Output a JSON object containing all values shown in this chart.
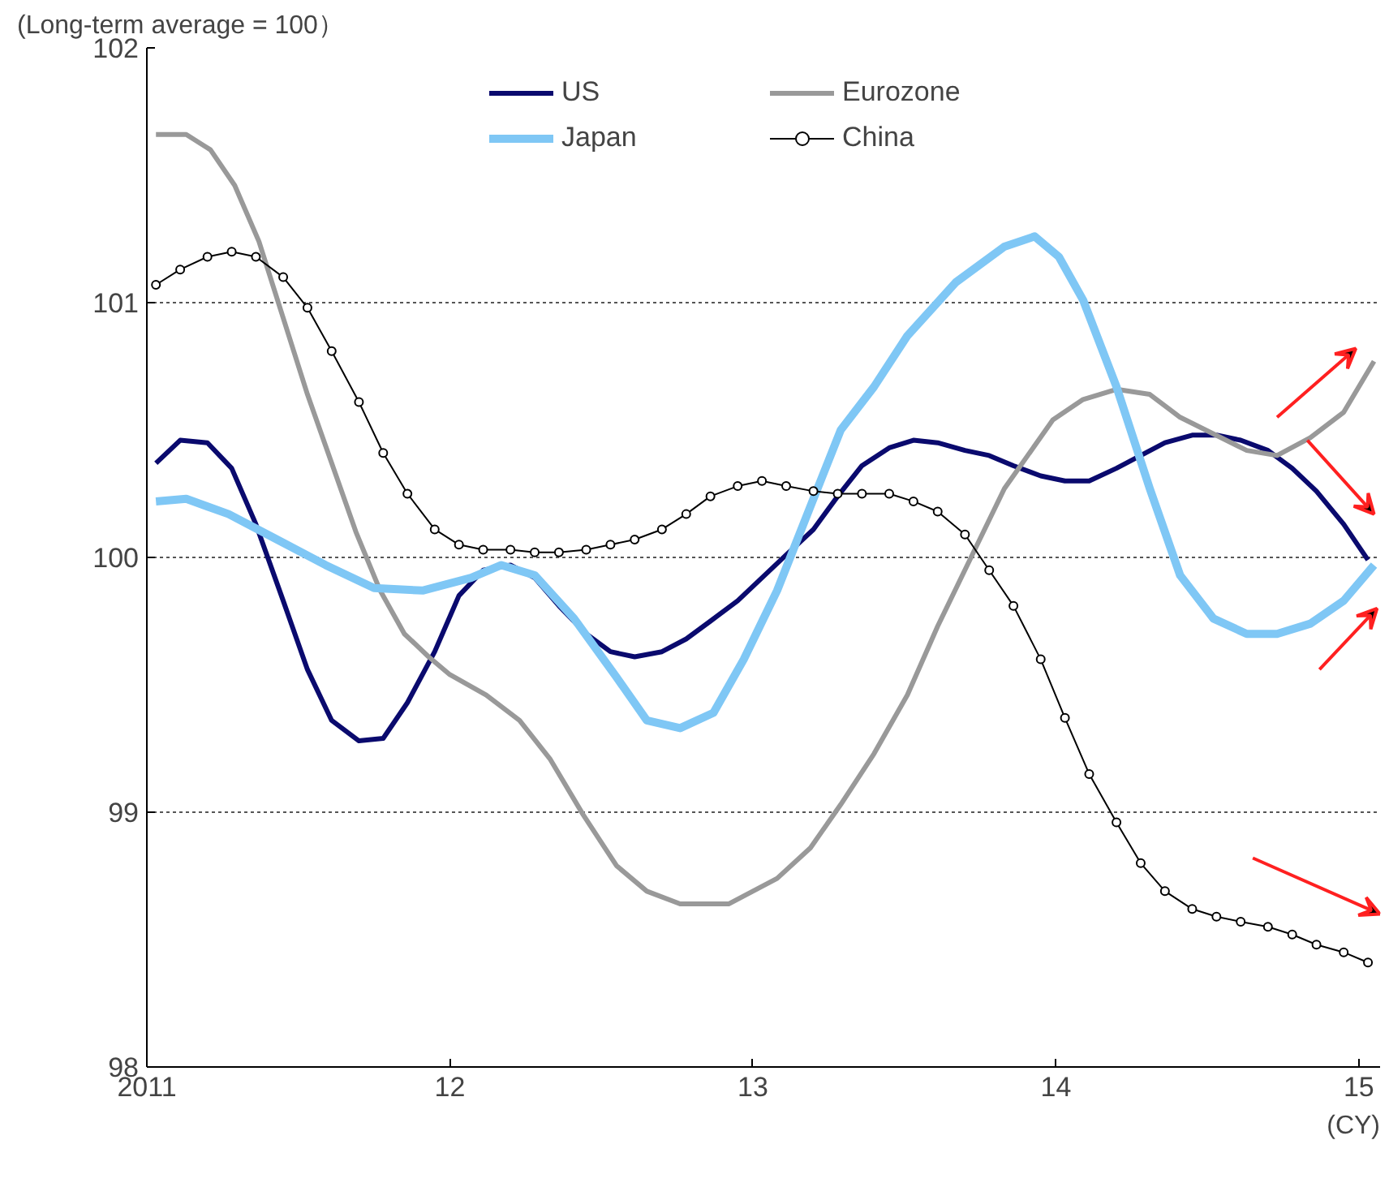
{
  "chart_data": {
    "type": "line",
    "title": "(Long-term average = 100）",
    "xlabel": "(CY)",
    "x": [
      2011.03,
      2011.11,
      2011.2,
      2011.28,
      2011.36,
      2011.45,
      2011.53,
      2011.61,
      2011.7,
      2011.78,
      2011.86,
      2011.95,
      2012.03,
      2012.11,
      2012.2,
      2012.28,
      2012.36,
      2012.45,
      2012.53,
      2012.61,
      2012.7,
      2012.78,
      2012.86,
      2012.95,
      2013.03,
      2013.11,
      2013.2,
      2013.28,
      2013.36,
      2013.45,
      2013.53,
      2013.61,
      2013.7,
      2013.78,
      2013.86,
      2013.95,
      2014.03,
      2014.11,
      2014.2,
      2014.28,
      2014.36,
      2014.45,
      2014.53,
      2014.61,
      2014.7,
      2014.78,
      2014.86,
      2014.95,
      2015.03
    ],
    "series": [
      {
        "name": "US",
        "color": "#0a0a6e",
        "values": [
          100.37,
          100.46,
          100.45,
          100.35,
          100.13,
          99.83,
          99.56,
          99.36,
          99.28,
          99.29,
          99.43,
          99.63,
          99.85,
          99.95,
          99.97,
          99.92,
          99.81,
          99.7,
          99.63,
          99.61,
          99.63,
          99.68,
          99.75,
          99.83,
          99.92,
          100.01,
          100.11,
          100.24,
          100.36,
          100.43,
          100.46,
          100.45,
          100.42,
          100.4,
          100.36,
          100.32,
          100.3,
          100.3,
          100.35,
          100.4,
          100.45,
          100.48,
          100.48,
          100.46,
          100.42,
          100.35,
          100.26,
          100.13,
          99.99
        ]
      },
      {
        "name": "Eurozone",
        "color": "#999999",
        "x": [
          2011.03,
          2011.13,
          2011.21,
          2011.29,
          2011.37,
          2011.45,
          2011.53,
          2011.61,
          2011.69,
          2011.77,
          2011.85,
          2011.93,
          2012.0,
          2012.12,
          2012.23,
          2012.33,
          2012.44,
          2012.55,
          2012.65,
          2012.76,
          2012.92,
          2013.08,
          2013.19,
          2013.29,
          2013.4,
          2013.51,
          2013.61,
          2013.72,
          2013.83,
          2013.99,
          2014.09,
          2014.2,
          2014.31,
          2014.41,
          2014.63,
          2014.73,
          2014.84,
          2014.95,
          2015.05
        ],
        "values": [
          101.66,
          101.66,
          101.6,
          101.46,
          101.24,
          100.94,
          100.64,
          100.37,
          100.1,
          99.87,
          99.7,
          99.61,
          99.54,
          99.46,
          99.36,
          99.21,
          98.99,
          98.79,
          98.69,
          98.64,
          98.64,
          98.74,
          98.86,
          99.03,
          99.23,
          99.46,
          99.73,
          100.0,
          100.27,
          100.54,
          100.62,
          100.66,
          100.64,
          100.55,
          100.42,
          100.4,
          100.47,
          100.57,
          100.77
        ]
      },
      {
        "name": "Japan",
        "color": "#7fc7f5",
        "x": [
          2011.03,
          2011.13,
          2011.27,
          2011.43,
          2011.59,
          2011.75,
          2011.91,
          2012.07,
          2012.17,
          2012.28,
          2012.41,
          2012.55,
          2012.65,
          2012.76,
          2012.87,
          2012.97,
          2013.08,
          2013.19,
          2013.29,
          2013.4,
          2013.51,
          2013.67,
          2013.83,
          2013.93,
          2014.01,
          2014.09,
          2014.2,
          2014.31,
          2014.41,
          2014.52,
          2014.63,
          2014.73,
          2014.84,
          2014.95,
          2015.05
        ],
        "values": [
          100.22,
          100.23,
          100.17,
          100.07,
          99.97,
          99.88,
          99.87,
          99.92,
          99.97,
          99.93,
          99.76,
          99.53,
          99.36,
          99.33,
          99.39,
          99.6,
          99.87,
          100.2,
          100.5,
          100.67,
          100.87,
          101.08,
          101.22,
          101.26,
          101.18,
          101.01,
          100.67,
          100.27,
          99.93,
          99.76,
          99.7,
          99.7,
          99.74,
          99.83,
          99.97
        ]
      },
      {
        "name": "China",
        "color": "#000000",
        "marker": "circle",
        "values": [
          101.07,
          101.13,
          101.18,
          101.2,
          101.18,
          101.1,
          100.98,
          100.81,
          100.61,
          100.41,
          100.25,
          100.11,
          100.05,
          100.03,
          100.03,
          100.02,
          100.02,
          100.03,
          100.05,
          100.07,
          100.11,
          100.17,
          100.24,
          100.28,
          100.3,
          100.28,
          100.26,
          100.25,
          100.25,
          100.25,
          100.22,
          100.18,
          100.09,
          99.95,
          99.81,
          99.6,
          99.37,
          99.15,
          98.96,
          98.8,
          98.69,
          98.62,
          98.59,
          98.57,
          98.55,
          98.52,
          98.48,
          98.45,
          98.41
        ]
      }
    ],
    "xlim": [
      2011,
      2015.07
    ],
    "xticks": [
      {
        "value": 2011,
        "label": "2011"
      },
      {
        "value": 2012,
        "label": "12"
      },
      {
        "value": 2013,
        "label": "13"
      },
      {
        "value": 2014,
        "label": "14"
      },
      {
        "value": 2015,
        "label": "15"
      }
    ],
    "ylim": [
      98,
      102
    ],
    "yticks": [
      98,
      99,
      100,
      101,
      102
    ],
    "grid": "y",
    "legend": "top",
    "line_style": "solid"
  }
}
